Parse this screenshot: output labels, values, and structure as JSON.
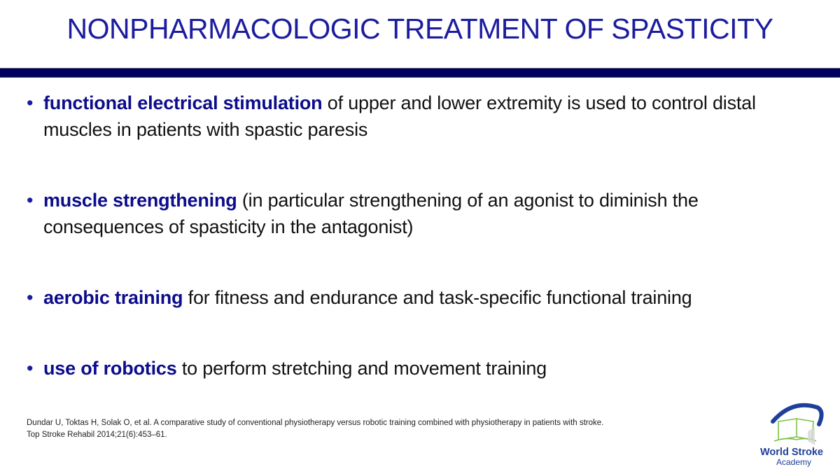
{
  "slide": {
    "title": "NONPHARMACOLOGIC TREATMENT OF SPASTICITY",
    "bullets": [
      {
        "term": "functional electrical stimulation",
        "text": " of upper and lower extremity is used to control distal muscles in patients with spastic paresis"
      },
      {
        "term": "muscle strengthening",
        "text": " (in particular strengthening of an agonist to diminish the consequences of spasticity in the antagonist)"
      },
      {
        "term": "aerobic training",
        "text": " for fitness and endurance and task-specific functional training"
      },
      {
        "term": "use of robotics",
        "text": " to perform stretching and movement training"
      }
    ],
    "reference": {
      "line1": "Dundar U, Toktas H, Solak O, et al. A comparative study of conventional physiotherapy versus robotic training combined with physiotherapy in patients with stroke.",
      "line2": "Top Stroke Rehabil 2014;21(6):453–61."
    },
    "logo": {
      "line1": "World Stroke",
      "line2": "Academy"
    },
    "colors": {
      "title": "#1c1ca0",
      "bar": "#00005e",
      "term": "#0c0c8c",
      "logo_green": "#7cc242"
    }
  }
}
